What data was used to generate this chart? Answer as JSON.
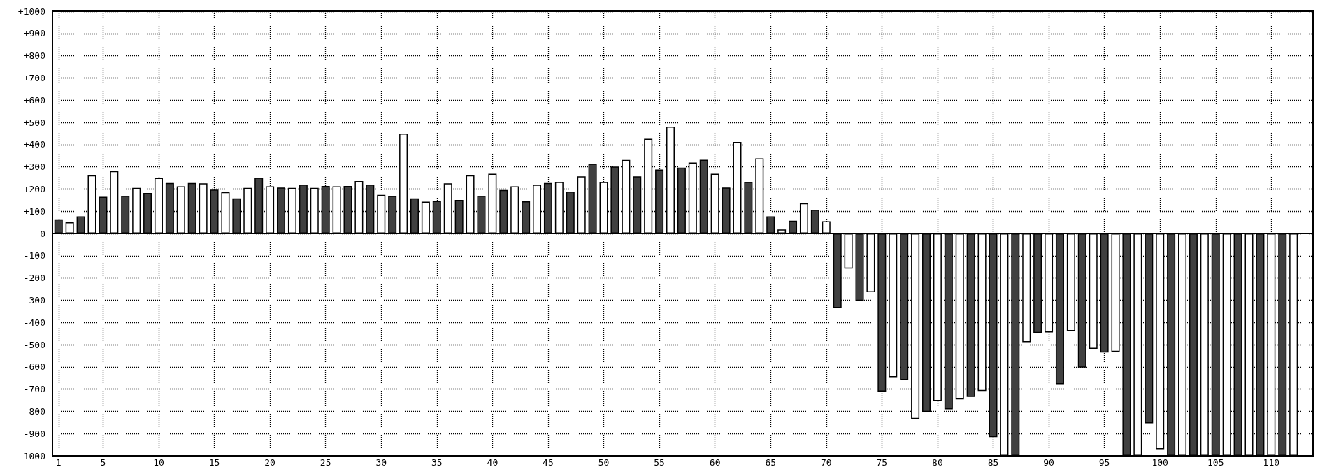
{
  "chart_data": {
    "type": "bar",
    "xlim": [
      0.45,
      113.75
    ],
    "xticks": [
      1,
      5,
      10,
      15,
      20,
      25,
      30,
      35,
      40,
      45,
      50,
      55,
      60,
      65,
      70,
      75,
      80,
      85,
      90,
      95,
      100,
      105,
      110
    ],
    "ylim": [
      -1000,
      1000
    ],
    "yticks": [
      -1000,
      -900,
      -800,
      -700,
      -600,
      -500,
      -400,
      -300,
      -200,
      -100,
      0,
      {
        "value": 100,
        "label": "+100"
      },
      {
        "value": 200,
        "label": "+200"
      },
      {
        "value": 300,
        "label": "+300"
      },
      {
        "value": 400,
        "label": "+400"
      },
      {
        "value": 500,
        "label": "+500"
      },
      {
        "value": 600,
        "label": "+600"
      },
      {
        "value": 700,
        "label": "+700"
      },
      {
        "value": 800,
        "label": "+800"
      },
      {
        "value": 900,
        "label": "+900"
      },
      {
        "value": 1000,
        "label": "+1000"
      }
    ],
    "grid": true,
    "series": [
      {
        "color": "#404040",
        "x": [
          1,
          3,
          5,
          7,
          9,
          11,
          13,
          15,
          17,
          19,
          21,
          23,
          25,
          27,
          29,
          31,
          33,
          35,
          37,
          39,
          41,
          43,
          45,
          47,
          49,
          51,
          53,
          55,
          57,
          59,
          61,
          63,
          65,
          67,
          69,
          71,
          73,
          75,
          77,
          79,
          81,
          83,
          85,
          87,
          89,
          91,
          93,
          95,
          97,
          99,
          101,
          103,
          105,
          107,
          109,
          111
        ],
        "values": [
          64,
          77,
          165,
          170,
          182,
          227,
          227,
          197,
          158,
          251,
          207,
          220,
          214,
          214,
          220,
          169,
          158,
          146,
          151,
          170,
          196,
          145,
          227,
          189,
          314,
          301,
          257,
          288,
          296,
          332,
          207,
          232,
          77,
          57,
          107,
          -335,
          -303,
          -711,
          -659,
          -803,
          -791,
          -735,
          -916,
          -1000,
          -447,
          -678,
          -603,
          -535,
          -1000,
          -854,
          -1000,
          -1000,
          -1000,
          -1000,
          -1000,
          -1000
        ]
      },
      {
        "color": "#ffffff",
        "x": [
          2,
          4,
          6,
          8,
          10,
          12,
          14,
          16,
          18,
          20,
          22,
          24,
          26,
          28,
          30,
          32,
          34,
          36,
          38,
          40,
          42,
          44,
          46,
          48,
          50,
          52,
          54,
          56,
          58,
          60,
          62,
          64,
          66,
          68,
          70,
          72,
          74,
          76,
          78,
          80,
          82,
          84,
          86,
          88,
          90,
          92,
          94,
          96,
          98,
          100,
          102,
          104,
          106,
          108,
          110,
          112
        ],
        "values": [
          50,
          262,
          281,
          205,
          250,
          212,
          226,
          186,
          205,
          212,
          205,
          205,
          212,
          236,
          174,
          450,
          143,
          226,
          262,
          269,
          212,
          219,
          232,
          257,
          232,
          331,
          426,
          481,
          319,
          269,
          412,
          338,
          18,
          136,
          55,
          -158,
          -264,
          -646,
          -834,
          -753,
          -746,
          -708,
          -1000,
          -489,
          -445,
          -439,
          -519,
          -532,
          -1000,
          -970,
          -1000,
          -1000,
          -1000,
          -1000,
          -1000,
          -1000
        ]
      }
    ]
  }
}
